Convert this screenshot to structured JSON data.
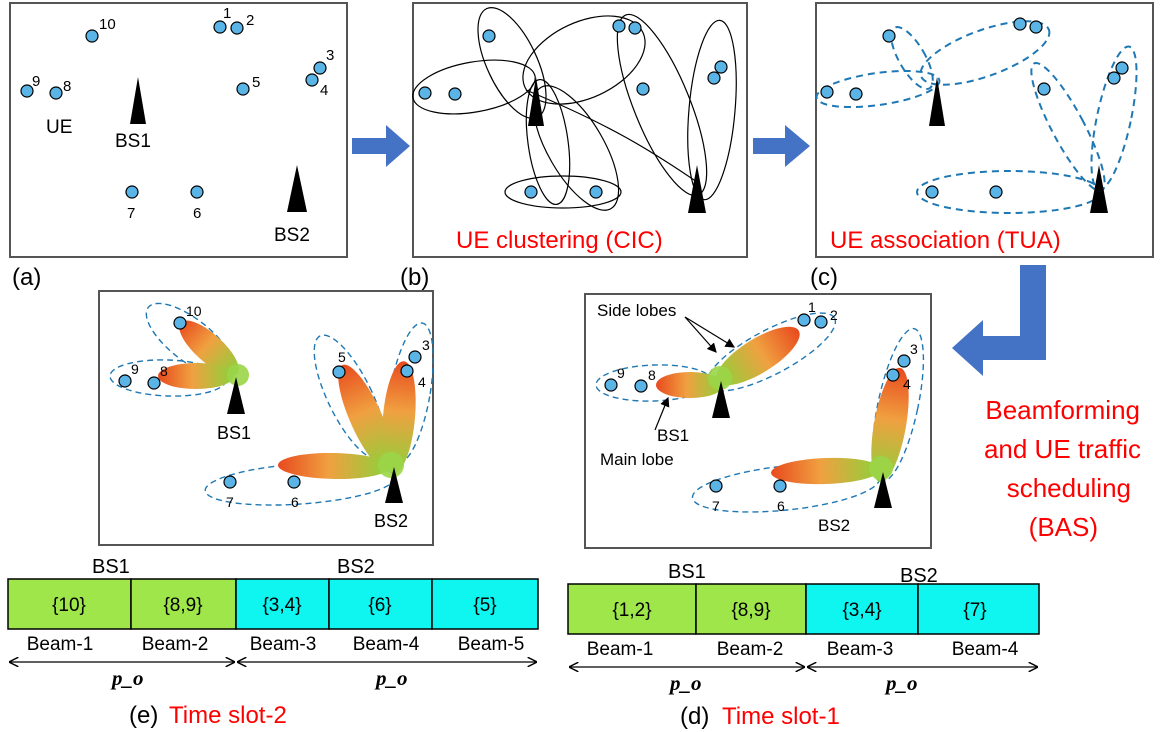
{
  "colors": {
    "ue_fill": "#5ab4e6",
    "arrow": "#4472c4",
    "red_text": "#ff0000",
    "cluster_dashed": "#1f78b4",
    "bs1_slot": "#9ee64a",
    "bs2_slot": "#0ff5f0"
  },
  "panels": {
    "a": {
      "tag": "(a)",
      "ue_label": "UE",
      "bs1": "BS1",
      "bs2": "BS2",
      "ue_numbers": [
        "1",
        "2",
        "3",
        "4",
        "5",
        "6",
        "7",
        "8",
        "9",
        "10"
      ]
    },
    "b": {
      "tag": "(b)",
      "caption": "UE clustering (CIC)"
    },
    "c": {
      "tag": "(c)",
      "caption": "UE association (TUA)"
    },
    "d": {
      "tag": "(d)",
      "caption": "Time slot-1",
      "side_lobes": "Side lobes",
      "bs1": "BS1",
      "main_lobe": "Main lobe",
      "bs2": "BS2",
      "ue_numbers": [
        "1",
        "2",
        "3",
        "4",
        "6",
        "7",
        "8",
        "9"
      ]
    },
    "e": {
      "tag": "(e)",
      "caption": "Time slot-2",
      "bs1": "BS1",
      "bs2": "BS2",
      "ue_numbers": [
        "3",
        "4",
        "5",
        "6",
        "7",
        "8",
        "9",
        "10"
      ]
    }
  },
  "bas_caption": [
    "Beamforming",
    "and UE traffic",
    "scheduling",
    "(BAS)"
  ],
  "schedule_e": {
    "bs1": "BS1",
    "bs2": "BS2",
    "cells": [
      "{10}",
      "{8,9}",
      "{3,4}",
      "{6}",
      "{5}"
    ],
    "beams": [
      "Beam-1",
      "Beam-2",
      "Beam-3",
      "Beam-4",
      "Beam-5"
    ],
    "period": "p_o"
  },
  "schedule_d": {
    "bs1": "BS1",
    "bs2": "BS2",
    "cells": [
      "{1,2}",
      "{8,9}",
      "{3,4}",
      "{7}"
    ],
    "beams": [
      "Beam-1",
      "Beam-2",
      "Beam-3",
      "Beam-4"
    ],
    "period": "p_o"
  }
}
